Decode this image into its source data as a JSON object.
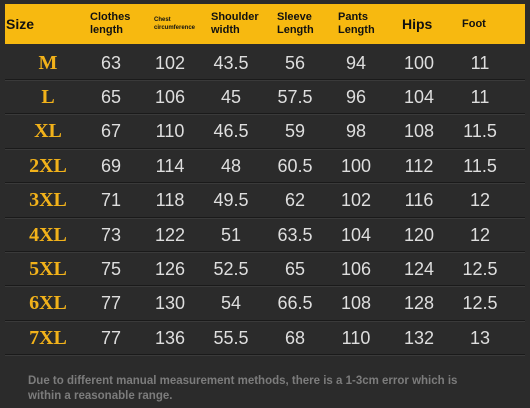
{
  "table": {
    "header": [
      "Size",
      "Clothes\nlength",
      "Chest\ncircumference",
      "Shoulder\nwidth",
      "Sleeve\nLength",
      "Pants\nLength",
      "Hips",
      "Foot"
    ],
    "rows": [
      [
        "M",
        "63",
        "102",
        "43.5",
        "56",
        "94",
        "100",
        "11"
      ],
      [
        "L",
        "65",
        "106",
        "45",
        "57.5",
        "96",
        "104",
        "11"
      ],
      [
        "XL",
        "67",
        "110",
        "46.5",
        "59",
        "98",
        "108",
        "11.5"
      ],
      [
        "2XL",
        "69",
        "114",
        "48",
        "60.5",
        "100",
        "112",
        "11.5"
      ],
      [
        "3XL",
        "71",
        "118",
        "49.5",
        "62",
        "102",
        "116",
        "12"
      ],
      [
        "4XL",
        "73",
        "122",
        "51",
        "63.5",
        "104",
        "120",
        "12"
      ],
      [
        "5XL",
        "75",
        "126",
        "52.5",
        "65",
        "106",
        "124",
        "12.5"
      ],
      [
        "6XL",
        "77",
        "130",
        "54",
        "66.5",
        "108",
        "128",
        "12.5"
      ],
      [
        "7XL",
        "77",
        "136",
        "55.5",
        "68",
        "110",
        "132",
        "13"
      ]
    ]
  },
  "note": "Due to different manual measurement methods, there is a 1-3cm error which is within a reasonable range."
}
